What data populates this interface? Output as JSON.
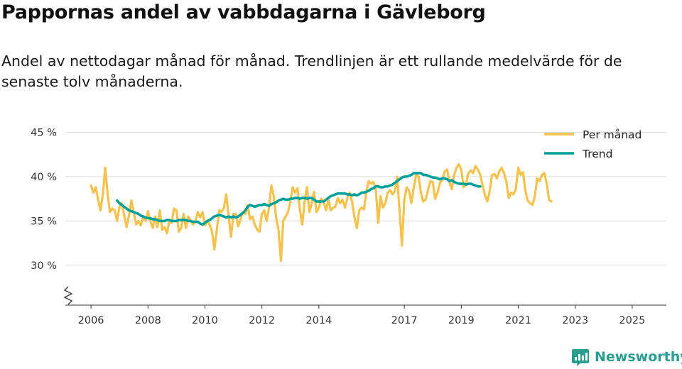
{
  "title": "Pappornas andel av vabbdagarna i Gävleborg",
  "subtitle": "Andel av nettodagar månad för månad. Trendlinjen är ett rullande medelvärde för de senaste tolv månaderna.",
  "brand": "Newsworthy",
  "colors": {
    "monthly": "#f5c24d",
    "trend": "#00a099",
    "grid": "#dddddd",
    "axis": "#333333",
    "brand": "#2a9d8f"
  },
  "chart_data": {
    "type": "line",
    "title": "Pappornas andel av vabbdagarna i Gävleborg",
    "xlabel": "",
    "ylabel": "",
    "ylim": [
      25.5,
      46
    ],
    "y_ticks": [
      {
        "value": 30,
        "label": "30 %"
      },
      {
        "value": 35,
        "label": "35 %"
      },
      {
        "value": 40,
        "label": "40 %"
      },
      {
        "value": 45,
        "label": "45 %"
      }
    ],
    "x_ticks": [
      {
        "value": 2006,
        "label": "2006"
      },
      {
        "value": 2008,
        "label": "2008"
      },
      {
        "value": 2010,
        "label": "2010"
      },
      {
        "value": 2012,
        "label": "2012"
      },
      {
        "value": 2014,
        "label": "2014"
      },
      {
        "value": 2017,
        "label": "2017"
      },
      {
        "value": 2019,
        "label": "2019"
      },
      {
        "value": 2021,
        "label": "2021"
      },
      {
        "value": 2023,
        "label": "2023"
      },
      {
        "value": 2025,
        "label": "2025"
      }
    ],
    "xlim": [
      2005.1,
      2026.2
    ],
    "axis_break": true,
    "legend": {
      "position": "top-right",
      "entries": [
        "Per månad",
        "Trend"
      ]
    },
    "series": [
      {
        "name": "Per månad",
        "start": 2006.0,
        "step": 0.08333,
        "values": [
          39.0,
          38.2,
          38.8,
          37.4,
          36.2,
          38.0,
          41.0,
          38.0,
          36.0,
          36.4,
          36.2,
          35.0,
          36.6,
          37.0,
          35.6,
          34.3,
          35.6,
          37.3,
          36.0,
          34.6,
          35.0,
          34.5,
          35.5,
          35.0,
          36.1,
          35.0,
          34.2,
          35.5,
          34.3,
          36.2,
          34.0,
          34.3,
          33.6,
          35.0,
          34.8,
          36.4,
          36.2,
          33.8,
          34.2,
          35.8,
          34.2,
          35.5,
          35.0,
          34.6,
          35.0,
          36.0,
          35.4,
          36.0,
          34.5,
          35.0,
          34.6,
          33.8,
          31.8,
          34.0,
          36.2,
          36.0,
          36.5,
          38.0,
          35.5,
          33.2,
          35.8,
          35.8,
          34.4,
          35.2,
          36.0,
          35.8,
          36.8,
          35.2,
          35.5,
          34.6,
          34.0,
          33.8,
          35.8,
          36.2,
          35.0,
          36.5,
          39.0,
          37.8,
          35.4,
          34.0,
          30.5,
          35.0,
          35.5,
          36.0,
          37.2,
          38.8,
          38.2,
          38.7,
          36.3,
          34.6,
          37.2,
          38.8,
          36.0,
          37.0,
          38.3,
          36.0,
          36.5,
          37.5,
          37.2,
          36.2,
          37.4,
          36.2,
          36.5,
          36.6,
          37.6,
          37.0,
          37.4,
          36.5,
          37.6,
          38.2,
          37.2,
          35.4,
          34.2,
          36.2,
          36.5,
          36.3,
          38.3,
          39.5,
          39.2,
          39.4,
          38.5,
          34.8,
          37.8,
          36.5,
          37.0,
          38.2,
          38.5,
          38.0,
          38.3,
          40.0,
          36.2,
          32.2,
          37.4,
          38.8,
          38.4,
          37.0,
          38.8,
          40.2,
          40.0,
          38.2,
          37.2,
          37.4,
          38.5,
          39.5,
          39.4,
          37.5,
          38.2,
          39.3,
          39.6,
          40.6,
          40.8,
          39.4,
          38.6,
          40.2,
          41.0,
          41.4,
          40.8,
          38.8,
          39.2,
          40.4,
          40.7,
          40.4,
          41.2,
          40.8,
          40.2,
          39.0,
          37.9,
          37.2,
          38.4,
          40.2,
          40.3,
          39.8,
          40.6,
          41.0,
          40.4,
          39.4,
          37.6,
          38.2,
          38.0,
          38.6,
          41.0,
          40.2,
          40.5,
          38.4,
          37.3,
          37.0,
          36.8,
          37.8,
          39.8,
          39.5,
          40.2,
          40.4,
          39.2,
          37.4,
          37.2
        ]
      },
      {
        "name": "Trend",
        "start": 2006.9167,
        "step": 0.08333,
        "values": [
          37.3,
          37.0,
          36.8,
          36.6,
          36.4,
          36.2,
          36.1,
          36.0,
          35.9,
          35.8,
          35.6,
          35.5,
          35.4,
          35.3,
          35.3,
          35.2,
          35.2,
          35.1,
          35.0,
          35.0,
          35.0,
          35.1,
          35.1,
          35.0,
          35.0,
          35.0,
          35.1,
          35.1,
          35.1,
          35.1,
          35.0,
          35.0,
          34.9,
          34.9,
          34.9,
          34.7,
          34.6,
          34.8,
          35.0,
          35.1,
          35.3,
          35.5,
          35.6,
          35.7,
          35.6,
          35.5,
          35.4,
          35.5,
          35.4,
          35.5,
          35.4,
          35.5,
          35.7,
          35.9,
          36.2,
          36.6,
          36.8,
          36.7,
          36.6,
          36.7,
          36.8,
          36.8,
          36.9,
          36.8,
          36.7,
          36.9,
          37.0,
          37.1,
          37.3,
          37.4,
          37.5,
          37.4,
          37.4,
          37.5,
          37.5,
          37.6,
          37.6,
          37.5,
          37.6,
          37.6,
          37.5,
          37.6,
          37.6,
          37.4,
          37.2,
          37.2,
          37.2,
          37.2,
          37.4,
          37.6,
          37.8,
          37.9,
          38.0,
          38.1,
          38.1,
          38.1,
          38.1,
          38.0,
          38.0,
          37.9,
          38.0,
          37.9,
          38.0,
          38.2,
          38.2,
          38.3,
          38.4,
          38.6,
          38.7,
          38.9,
          38.9,
          38.8,
          38.8,
          38.9,
          38.9,
          39.0,
          39.1,
          39.3,
          39.5,
          39.7,
          39.9,
          40.0,
          40.0,
          40.1,
          40.2,
          40.4,
          40.4,
          40.4,
          40.4,
          40.2,
          40.2,
          40.1,
          40.0,
          39.9,
          39.9,
          39.8,
          39.7,
          39.8,
          39.8,
          39.7,
          39.5,
          39.6,
          39.4,
          39.3,
          39.2,
          39.2,
          39.2,
          39.1,
          39.2,
          39.2,
          39.1,
          39.0,
          38.9,
          38.9
        ]
      }
    ]
  }
}
